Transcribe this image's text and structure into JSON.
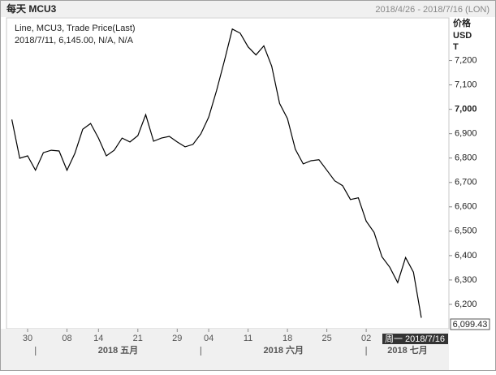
{
  "chart_data": {
    "type": "line",
    "title": "每天 MCU3",
    "date_range": "2018/4/26 - 2018/7/16 (LON)",
    "legend_lines": [
      "Line, MCU3, Trade Price(Last)",
      "2018/7/11, 6,145.00, N/A, N/A"
    ],
    "y_label": [
      "价格",
      "USD",
      "T"
    ],
    "cursor_label": "周一 2018/7/16",
    "last_price_label": "6,099.43",
    "months": [
      "2018 五月",
      "2018 六月",
      "2018 七月"
    ],
    "categories": [
      null,
      null,
      "30",
      null,
      null,
      null,
      null,
      "08",
      null,
      null,
      null,
      "14",
      null,
      null,
      null,
      null,
      "21",
      null,
      null,
      null,
      null,
      "29",
      null,
      null,
      null,
      "04",
      null,
      null,
      null,
      null,
      "11",
      null,
      null,
      null,
      null,
      "18",
      null,
      null,
      null,
      null,
      "25",
      null,
      null,
      null,
      null,
      "02",
      null,
      null,
      null,
      null,
      null,
      null,
      null,
      null,
      null,
      null
    ],
    "series": [
      {
        "name": "MCU3",
        "color": "#000000",
        "values": [
          6958,
          6799,
          6809,
          6750,
          6822,
          6832,
          6829,
          6750,
          6819,
          6918,
          6942,
          6882,
          6809,
          6832,
          6882,
          6866,
          6892,
          6978,
          6869,
          6882,
          6889,
          6866,
          6846,
          6856,
          6899,
          6968,
          7077,
          7200,
          7329,
          7312,
          7256,
          7223,
          7260,
          7177,
          7024,
          6962,
          6836,
          6776,
          6789,
          6793,
          6750,
          6707,
          6687,
          6630,
          6637,
          6541,
          6495,
          6395,
          6352,
          6289,
          6392,
          6332,
          6145,
          null,
          null,
          null
        ]
      }
    ],
    "ylim": [
      6100,
      7375
    ],
    "yticks": [
      {
        "value": 6200,
        "label": "6,200"
      },
      {
        "value": 6300,
        "label": "6,300"
      },
      {
        "value": 6400,
        "label": "6,400"
      },
      {
        "value": 6500,
        "label": "6,500"
      },
      {
        "value": 6600,
        "label": "6,600"
      },
      {
        "value": 6700,
        "label": "6,700"
      },
      {
        "value": 6800,
        "label": "6,800"
      },
      {
        "value": 6900,
        "label": "6,900"
      },
      {
        "value": 7000,
        "label": "7,000"
      },
      {
        "value": 7100,
        "label": "7,100"
      },
      {
        "value": 7200,
        "label": "7,200"
      }
    ],
    "grid": false
  }
}
